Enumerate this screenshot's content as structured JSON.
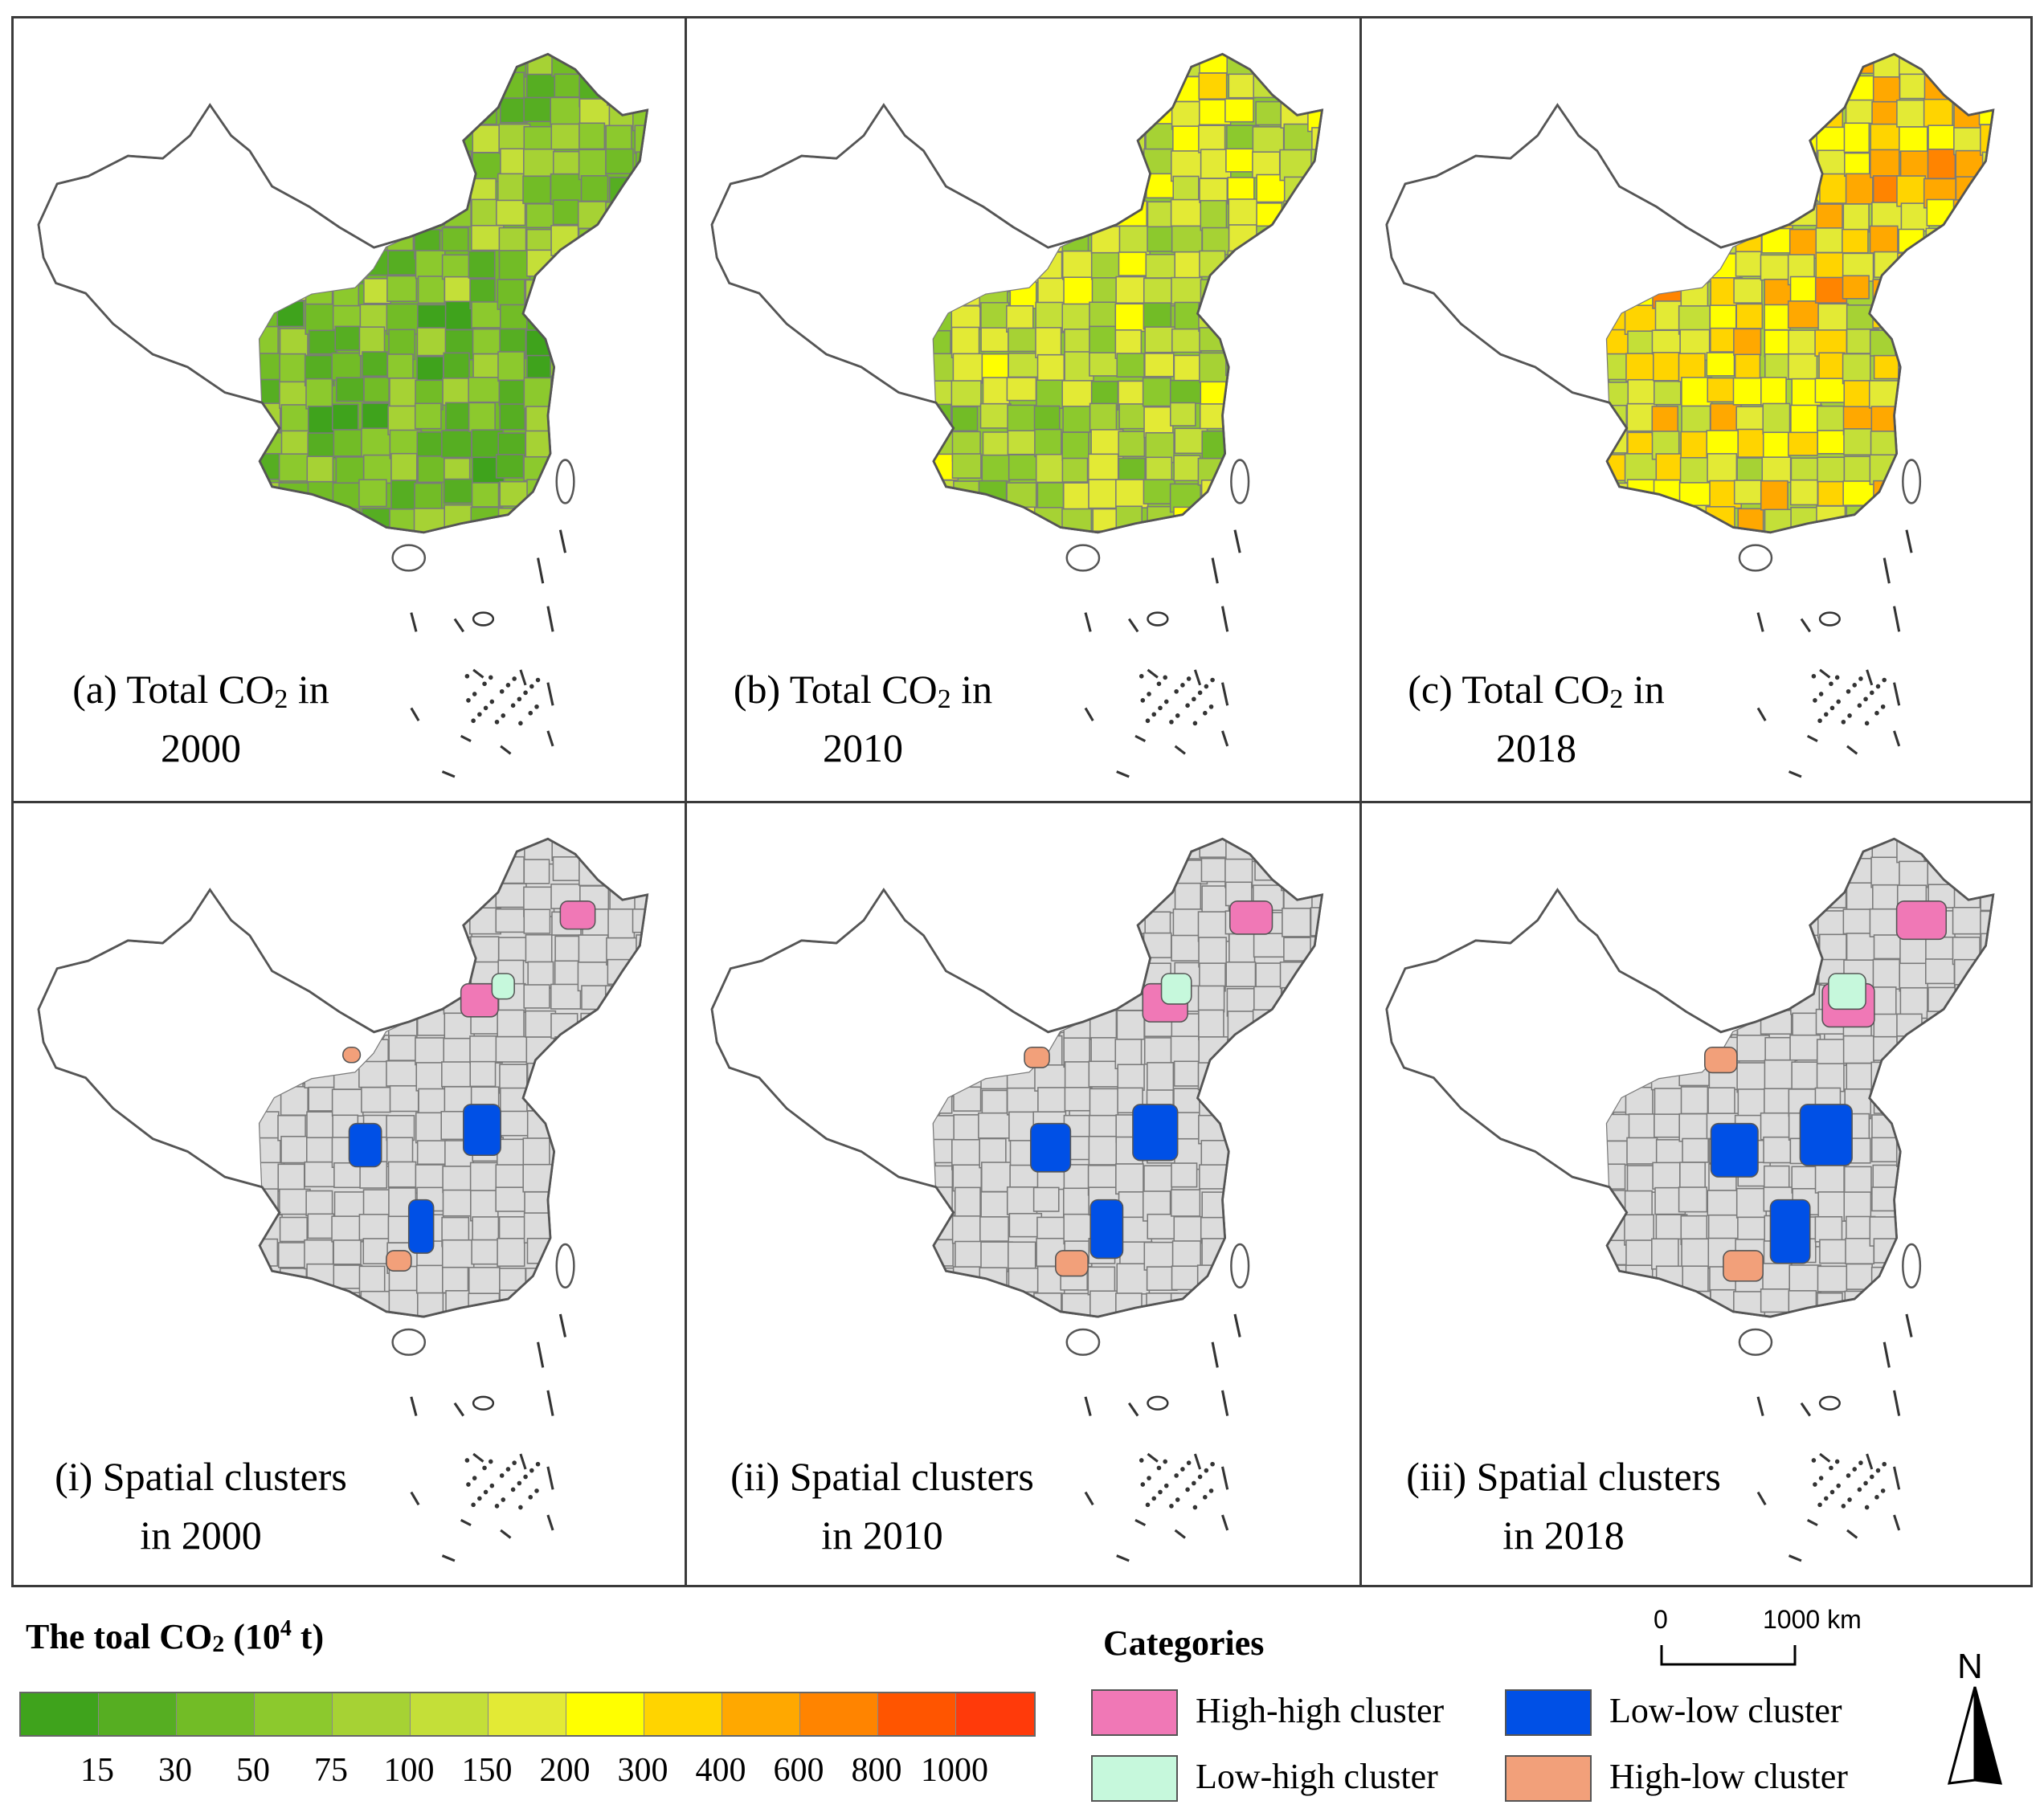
{
  "panels": [
    {
      "id": "a",
      "line1": "(a) Total CO",
      "sub": "2",
      "line1_tail": " in",
      "line2": "2000",
      "kind": "co2",
      "level": 0
    },
    {
      "id": "b",
      "line1": "(b) Total CO",
      "sub": "2",
      "line1_tail": " in",
      "line2": "2010",
      "kind": "co2",
      "level": 1
    },
    {
      "id": "c",
      "line1": "(c) Total CO",
      "sub": "2",
      "line1_tail": " in",
      "line2": "2018",
      "kind": "co2",
      "level": 2
    },
    {
      "id": "i",
      "line1": "(i) Spatial clusters",
      "sub": "",
      "line1_tail": "",
      "line2": "in 2000",
      "kind": "cluster",
      "level": 0
    },
    {
      "id": "ii",
      "line1": "(ii) Spatial clusters",
      "sub": "",
      "line1_tail": "",
      "line2": "in 2010",
      "kind": "cluster",
      "level": 1
    },
    {
      "id": "iii",
      "line1": "(iii) Spatial clusters",
      "sub": "",
      "line1_tail": "",
      "line2": "in 2018",
      "kind": "cluster",
      "level": 2
    }
  ],
  "legend": {
    "title_main": "The toal CO",
    "title_sub": "2",
    "title_mid": " (10",
    "title_sup": "4",
    "title_end": " t)",
    "ticks": [
      "15",
      "30",
      "50",
      "75",
      "100",
      "150",
      "200",
      "300",
      "400",
      "600",
      "800",
      "1000"
    ],
    "colors": [
      "#3fa31c",
      "#56ae22",
      "#72bc26",
      "#8cc92d",
      "#a6d234",
      "#c4df38",
      "#e3ea35",
      "#ffff00",
      "#ffd400",
      "#ffa800",
      "#ff8400",
      "#ff5500",
      "#ff3a0a"
    ]
  },
  "categories": {
    "title": "Categories",
    "items": [
      {
        "label": "High-high cluster",
        "color": "#f078b6"
      },
      {
        "label": "Low-low cluster",
        "color": "#0050e6"
      },
      {
        "label": "Low-high cluster",
        "color": "#c6f8dc"
      },
      {
        "label": "High-low cluster",
        "color": "#f2a07a"
      }
    ]
  },
  "scale_bar": {
    "start": "0",
    "end": "1000 km"
  },
  "north": "N",
  "map_colors": {
    "cluster_base": "#dcdcdc",
    "outline": "#555555",
    "boundary": "#7a7a7a"
  }
}
